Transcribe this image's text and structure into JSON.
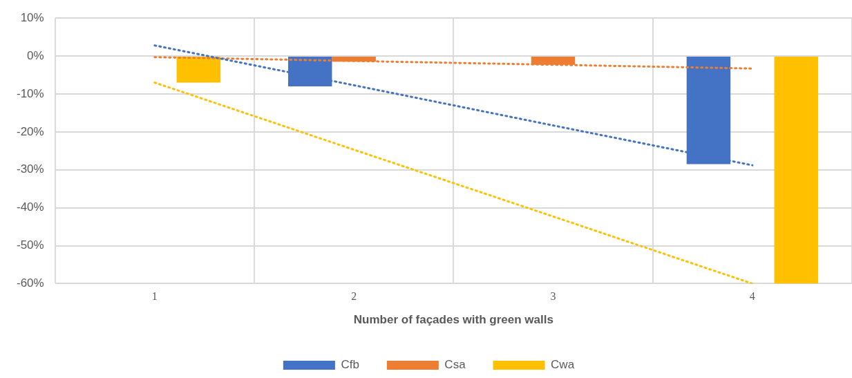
{
  "chart_data": {
    "type": "bar",
    "xlabel": "Number of façades with green walls",
    "categories": [
      "1",
      "2",
      "3",
      "4"
    ],
    "series": [
      {
        "name": "Cfb",
        "color": "#4472c4",
        "values": [
          null,
          -8,
          null,
          -28.5
        ]
      },
      {
        "name": "Csa",
        "color": "#ed7d31",
        "values": [
          null,
          -1.5,
          -2.3,
          null
        ]
      },
      {
        "name": "Cwa",
        "color": "#ffc000",
        "values": [
          -7,
          null,
          null,
          -60
        ]
      },
      {
        "type": "line",
        "color": "#4472c4",
        "line_style": "dotted",
        "marker": "none",
        "values": [
          2.8,
          -7.7,
          -18.3,
          -28.8
        ]
      },
      {
        "type": "line",
        "color": "#ed7d31",
        "line_style": "dotted",
        "marker": "none",
        "values": [
          -0.3,
          -1.3,
          -2.3,
          -3.3
        ]
      },
      {
        "type": "line",
        "color": "#ffc000",
        "line_style": "dotted",
        "marker": "none",
        "values": [
          -7,
          -24.7,
          -42.3,
          -60
        ]
      }
    ],
    "ylim": [
      -60,
      10
    ],
    "yticks": [
      {
        "value": -60,
        "label": "-60%"
      },
      {
        "value": -50,
        "label": "-50%"
      },
      {
        "value": -40,
        "label": "-40%"
      },
      {
        "value": -30,
        "label": "-30%"
      },
      {
        "value": -20,
        "label": "-20%"
      },
      {
        "value": -10,
        "label": "-10%"
      },
      {
        "value": 0,
        "label": "0%"
      },
      {
        "value": 10,
        "label": "10%"
      }
    ],
    "grid": true,
    "legend": "bottom"
  }
}
